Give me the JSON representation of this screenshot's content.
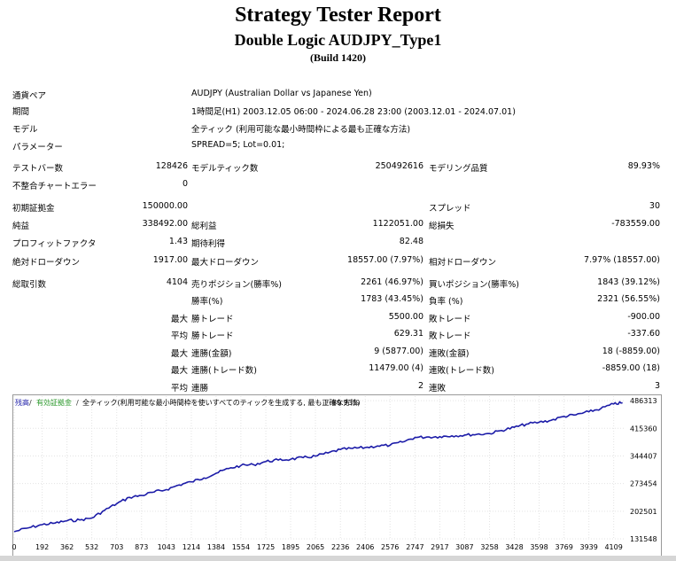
{
  "report": {
    "title": "Strategy Tester Report",
    "subtitle": "Double Logic AUDJPY_Type1",
    "build": "(Build 1420)"
  },
  "info": {
    "symbol_label": "通貨ペア",
    "symbol_value": "AUDJPY (Australian Dollar vs Japanese Yen)",
    "period_label": "期間",
    "period_value": "1時間足(H1) 2003.12.05 06:00 - 2024.06.28 23:00 (2003.12.01 - 2024.07.01)",
    "model_label": "モデル",
    "model_value": "全ティック (利用可能な最小時間枠による最も正確な方法)",
    "params_label": "パラメーター",
    "params_value": "SPREAD=5; Lot=0.01;"
  },
  "stats": {
    "bars_label": "テストバー数",
    "bars_value": "128426",
    "ticks_label": "モデルティック数",
    "ticks_value": "250492616",
    "quality_label": "モデリング品質",
    "quality_value": "89.93%",
    "mismatch_label": "不整合チャートエラー",
    "mismatch_value": "0",
    "deposit_label": "初期証拠金",
    "deposit_value": "150000.00",
    "spread_label": "スプレッド",
    "spread_value": "30",
    "net_label": "純益",
    "net_value": "338492.00",
    "gross_profit_label": "総利益",
    "gross_profit_value": "1122051.00",
    "gross_loss_label": "総損失",
    "gross_loss_value": "-783559.00",
    "pf_label": "プロフィットファクタ",
    "pf_value": "1.43",
    "expected_label": "期待利得",
    "expected_value": "82.48",
    "abs_dd_label": "絶対ドローダウン",
    "abs_dd_value": "1917.00",
    "max_dd_label": "最大ドローダウン",
    "max_dd_value": "18557.00 (7.97%)",
    "rel_dd_label": "相対ドローダウン",
    "rel_dd_value": "7.97% (18557.00)",
    "trades_label": "総取引数",
    "trades_value": "4104",
    "short_label": "売りポジション(勝率%)",
    "short_value": "2261 (46.97%)",
    "long_label": "買いポジション(勝率%)",
    "long_value": "1843 (39.12%)",
    "win_pct_label": "勝率(%)",
    "win_pct_value": "1783 (43.45%)",
    "loss_pct_label": "負率 (%)",
    "loss_pct_value": "2321 (56.55%)",
    "max_label": "最大",
    "avg_label": "平均",
    "win_trade_label": "勝トレード",
    "loss_trade_label": "敗トレード",
    "largest_win": "5500.00",
    "largest_loss": "-900.00",
    "avg_win": "629.31",
    "avg_loss": "-337.60",
    "consec_wins_amt_label": "連勝(金額)",
    "consec_wins_amt_value": "9 (5877.00)",
    "consec_losses_amt_label": "連敗(金額)",
    "consec_losses_amt_value": "18 (-8859.00)",
    "consec_profit_label": "連勝(トレード数)",
    "consec_profit_value": "11479.00 (4)",
    "consec_loss_label": "連敗(トレード数)",
    "consec_loss_value": "-8859.00 (18)",
    "avg_consec_win_label": "連勝",
    "avg_consec_win_value": "2",
    "avg_consec_loss_label": "連敗",
    "avg_consec_loss_value": "3"
  },
  "chart_legend": {
    "balance": "残高",
    "equity": "有効証拠金",
    "model": "全ティック(利用可能な最小時間枠を使いすべてのティックを生成する, 最も正確な方法)",
    "quality": "89.93%"
  },
  "chart_data": {
    "type": "line",
    "series_color": "#1c1ca8",
    "x_ticks": [
      "0",
      "192",
      "362",
      "532",
      "703",
      "873",
      "1043",
      "1214",
      "1384",
      "1554",
      "1725",
      "1895",
      "2065",
      "2236",
      "2406",
      "2576",
      "2747",
      "2917",
      "3087",
      "3258",
      "3428",
      "3598",
      "3769",
      "3939",
      "4109"
    ],
    "y_ticks": [
      "486313",
      "415360",
      "344407",
      "273454",
      "202501",
      "131548"
    ],
    "ylim": [
      131548,
      498000
    ],
    "xlim": [
      0,
      4190
    ],
    "x": [
      0,
      100,
      192,
      280,
      362,
      450,
      532,
      620,
      703,
      790,
      873,
      960,
      1043,
      1130,
      1214,
      1300,
      1384,
      1470,
      1554,
      1640,
      1725,
      1810,
      1895,
      1980,
      2065,
      2150,
      2236,
      2320,
      2406,
      2490,
      2576,
      2660,
      2747,
      2830,
      2917,
      3000,
      3087,
      3170,
      3258,
      3340,
      3428,
      3510,
      3598,
      3680,
      3769,
      3850,
      3939,
      4020,
      4109,
      4170
    ],
    "y": [
      150000,
      160000,
      168000,
      172000,
      178000,
      180000,
      185000,
      205000,
      222000,
      238000,
      243000,
      252000,
      258000,
      270000,
      278000,
      288000,
      300000,
      312000,
      320000,
      322000,
      330000,
      334000,
      336000,
      340000,
      344000,
      352000,
      361000,
      364000,
      366000,
      370000,
      372000,
      380000,
      392000,
      393000,
      394000,
      396000,
      398000,
      400000,
      402000,
      410000,
      418000,
      426000,
      431000,
      436000,
      446000,
      450000,
      458000,
      466000,
      478000,
      481000
    ]
  }
}
